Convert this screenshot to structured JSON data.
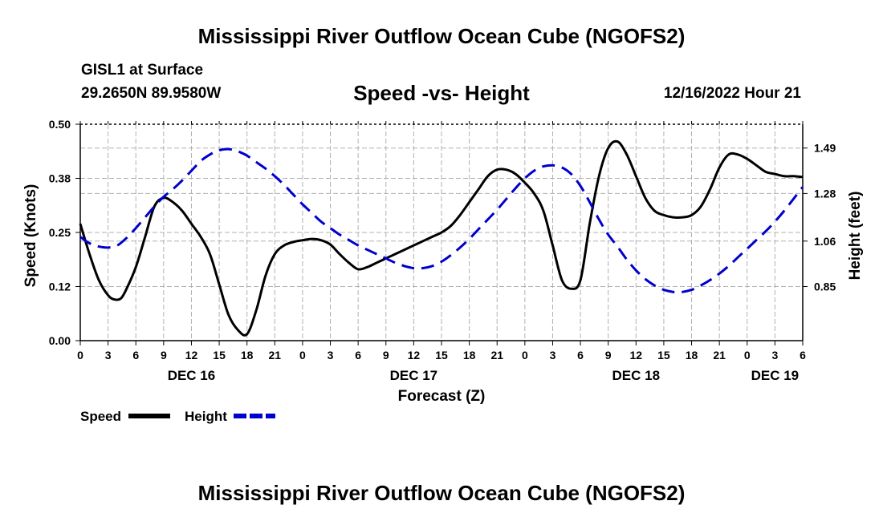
{
  "header": {
    "title": "Mississippi River Outflow Ocean Cube (NGOFS2)",
    "station": "GISL1 at Surface",
    "coords": "29.2650N  89.9580W",
    "subtitle": "Speed -vs- Height",
    "datetime": "12/16/2022 Hour 21"
  },
  "footer": {
    "title": "Mississippi River Outflow Ocean Cube (NGOFS2)"
  },
  "chart_data": {
    "type": "line",
    "title": "Speed -vs- Height",
    "xlabel": "Forecast (Z)",
    "ylabel": "Speed (Knots)",
    "y2label": "Height (feet)",
    "x_range_hours": [
      0,
      78
    ],
    "ylim": [
      0,
      0.5
    ],
    "y2lim": [
      0.6,
      1.6
    ],
    "yticks": [
      "0.00",
      "0.12",
      "0.25",
      "0.38",
      "0.50"
    ],
    "y2ticks": [
      {
        "value": 0.85,
        "label": "0.85"
      },
      {
        "value": 1.06,
        "label": "1.06"
      },
      {
        "value": 1.28,
        "label": "1.28"
      },
      {
        "value": 1.49,
        "label": "1.49"
      }
    ],
    "xticks": [
      "0",
      "3",
      "6",
      "9",
      "12",
      "15",
      "18",
      "21",
      "0",
      "3",
      "6",
      "9",
      "12",
      "15",
      "18",
      "21",
      "0",
      "3",
      "6",
      "9",
      "12",
      "15",
      "18",
      "21",
      "0",
      "3",
      "6"
    ],
    "day_labels": [
      {
        "hour": 12,
        "label": "DEC 16"
      },
      {
        "hour": 36,
        "label": "DEC 17"
      },
      {
        "hour": 60,
        "label": "DEC 18"
      },
      {
        "hour": 75,
        "label": "DEC 19"
      }
    ],
    "grid": true,
    "legend_position": "bottom-left",
    "series": [
      {
        "name": "Speed",
        "axis": "left",
        "color": "#000000",
        "style": "solid",
        "points": [
          [
            0,
            0.27
          ],
          [
            1,
            0.2
          ],
          [
            2,
            0.14
          ],
          [
            3,
            0.105
          ],
          [
            3.7,
            0.095
          ],
          [
            4.4,
            0.098
          ],
          [
            5,
            0.12
          ],
          [
            6,
            0.17
          ],
          [
            7,
            0.24
          ],
          [
            8,
            0.31
          ],
          [
            9,
            0.33
          ],
          [
            10,
            0.32
          ],
          [
            11,
            0.3
          ],
          [
            12,
            0.27
          ],
          [
            13,
            0.24
          ],
          [
            14,
            0.2
          ],
          [
            15,
            0.13
          ],
          [
            16,
            0.06
          ],
          [
            17,
            0.025
          ],
          [
            18,
            0.015
          ],
          [
            19,
            0.07
          ],
          [
            20,
            0.15
          ],
          [
            21,
            0.2
          ],
          [
            22,
            0.22
          ],
          [
            23,
            0.228
          ],
          [
            24,
            0.232
          ],
          [
            25,
            0.235
          ],
          [
            26,
            0.232
          ],
          [
            27,
            0.222
          ],
          [
            28,
            0.2
          ],
          [
            29,
            0.18
          ],
          [
            30,
            0.165
          ],
          [
            31,
            0.17
          ],
          [
            32,
            0.18
          ],
          [
            33,
            0.19
          ],
          [
            34,
            0.2
          ],
          [
            35,
            0.21
          ],
          [
            36,
            0.22
          ],
          [
            37,
            0.23
          ],
          [
            38,
            0.24
          ],
          [
            39,
            0.25
          ],
          [
            40,
            0.265
          ],
          [
            41,
            0.29
          ],
          [
            42,
            0.32
          ],
          [
            43,
            0.35
          ],
          [
            44,
            0.38
          ],
          [
            45,
            0.395
          ],
          [
            46,
            0.395
          ],
          [
            47,
            0.385
          ],
          [
            48,
            0.365
          ],
          [
            49,
            0.34
          ],
          [
            50,
            0.3
          ],
          [
            51,
            0.22
          ],
          [
            52,
            0.14
          ],
          [
            53,
            0.12
          ],
          [
            54,
            0.14
          ],
          [
            55,
            0.27
          ],
          [
            56,
            0.38
          ],
          [
            57,
            0.445
          ],
          [
            58,
            0.46
          ],
          [
            59,
            0.43
          ],
          [
            60,
            0.38
          ],
          [
            61,
            0.33
          ],
          [
            62,
            0.3
          ],
          [
            63,
            0.29
          ],
          [
            64,
            0.285
          ],
          [
            65,
            0.285
          ],
          [
            66,
            0.29
          ],
          [
            67,
            0.31
          ],
          [
            68,
            0.35
          ],
          [
            69,
            0.4
          ],
          [
            70,
            0.43
          ],
          [
            71,
            0.43
          ],
          [
            72,
            0.42
          ],
          [
            73,
            0.405
          ],
          [
            74,
            0.39
          ],
          [
            75,
            0.385
          ],
          [
            76,
            0.38
          ],
          [
            77,
            0.38
          ],
          [
            78,
            0.378
          ]
        ]
      },
      {
        "name": "Height",
        "axis": "right",
        "color": "#0000cc",
        "style": "dashed",
        "points": [
          [
            0,
            1.08
          ],
          [
            1,
            1.05
          ],
          [
            2,
            1.035
          ],
          [
            3,
            1.03
          ],
          [
            4,
            1.04
          ],
          [
            5,
            1.075
          ],
          [
            6,
            1.12
          ],
          [
            7,
            1.17
          ],
          [
            8,
            1.22
          ],
          [
            9,
            1.265
          ],
          [
            10,
            1.3
          ],
          [
            11,
            1.34
          ],
          [
            12,
            1.385
          ],
          [
            13,
            1.43
          ],
          [
            14,
            1.46
          ],
          [
            15,
            1.48
          ],
          [
            16,
            1.485
          ],
          [
            17,
            1.475
          ],
          [
            18,
            1.455
          ],
          [
            19,
            1.425
          ],
          [
            20,
            1.395
          ],
          [
            21,
            1.36
          ],
          [
            22,
            1.32
          ],
          [
            23,
            1.275
          ],
          [
            24,
            1.23
          ],
          [
            25,
            1.19
          ],
          [
            26,
            1.15
          ],
          [
            27,
            1.12
          ],
          [
            28,
            1.09
          ],
          [
            29,
            1.065
          ],
          [
            30,
            1.04
          ],
          [
            31,
            1.02
          ],
          [
            32,
            1.0
          ],
          [
            33,
            0.98
          ],
          [
            34,
            0.96
          ],
          [
            35,
            0.945
          ],
          [
            36,
            0.935
          ],
          [
            37,
            0.935
          ],
          [
            38,
            0.945
          ],
          [
            39,
            0.965
          ],
          [
            40,
            0.995
          ],
          [
            41,
            1.03
          ],
          [
            42,
            1.07
          ],
          [
            43,
            1.115
          ],
          [
            44,
            1.16
          ],
          [
            45,
            1.205
          ],
          [
            46,
            1.255
          ],
          [
            47,
            1.305
          ],
          [
            48,
            1.35
          ],
          [
            49,
            1.385
          ],
          [
            50,
            1.405
          ],
          [
            51,
            1.41
          ],
          [
            52,
            1.4
          ],
          [
            53,
            1.37
          ],
          [
            54,
            1.315
          ],
          [
            55,
            1.24
          ],
          [
            56,
            1.16
          ],
          [
            57,
            1.09
          ],
          [
            58,
            1.035
          ],
          [
            59,
            0.975
          ],
          [
            60,
            0.925
          ],
          [
            61,
            0.885
          ],
          [
            62,
            0.855
          ],
          [
            63,
            0.835
          ],
          [
            64,
            0.825
          ],
          [
            65,
            0.825
          ],
          [
            66,
            0.835
          ],
          [
            67,
            0.855
          ],
          [
            68,
            0.88
          ],
          [
            69,
            0.91
          ],
          [
            70,
            0.945
          ],
          [
            71,
            0.985
          ],
          [
            72,
            1.025
          ],
          [
            73,
            1.065
          ],
          [
            74,
            1.105
          ],
          [
            75,
            1.15
          ],
          [
            76,
            1.2
          ],
          [
            77,
            1.255
          ],
          [
            78,
            1.31
          ]
        ]
      }
    ]
  }
}
